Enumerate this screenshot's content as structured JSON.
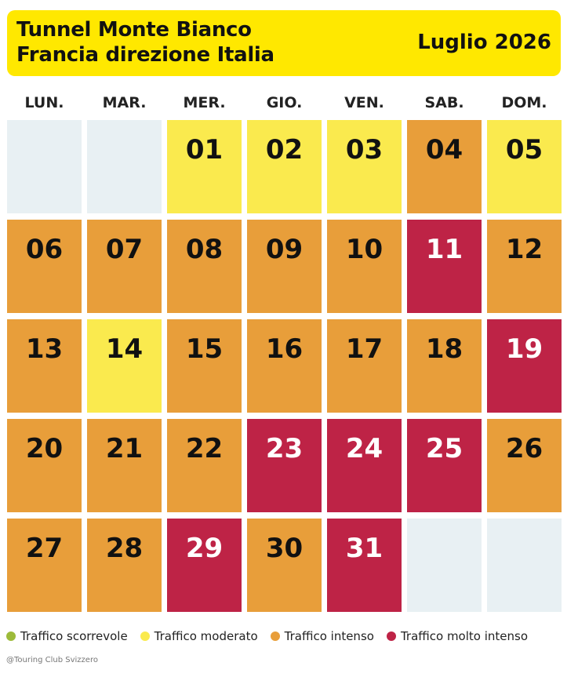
{
  "header": {
    "title": [
      "Tunnel Monte Bianco",
      "Francia direzione Italia"
    ],
    "month": "Luglio 2026"
  },
  "weekdays": [
    "LUN.",
    "MAR.",
    "MER.",
    "GIO.",
    "VEN.",
    "SAB.",
    "DOM."
  ],
  "empty_color": "#E8F0F3",
  "weeks": [
    [
      null,
      null,
      {
        "label": "01",
        "level": 1
      },
      {
        "label": "02",
        "level": 1
      },
      {
        "label": "03",
        "level": 1
      },
      {
        "label": "04",
        "level": 2
      },
      {
        "label": "05",
        "level": 1
      }
    ],
    [
      {
        "label": "06",
        "level": 2
      },
      {
        "label": "07",
        "level": 2
      },
      {
        "label": "08",
        "level": 2
      },
      {
        "label": "09",
        "level": 2
      },
      {
        "label": "10",
        "level": 2
      },
      {
        "label": "11",
        "level": 3
      },
      {
        "label": "12",
        "level": 2
      }
    ],
    [
      {
        "label": "13",
        "level": 2
      },
      {
        "label": "14",
        "level": 1
      },
      {
        "label": "15",
        "level": 2
      },
      {
        "label": "16",
        "level": 2
      },
      {
        "label": "17",
        "level": 2
      },
      {
        "label": "18",
        "level": 2
      },
      {
        "label": "19",
        "level": 3
      }
    ],
    [
      {
        "label": "20",
        "level": 2
      },
      {
        "label": "21",
        "level": 2
      },
      {
        "label": "22",
        "level": 2
      },
      {
        "label": "23",
        "level": 3
      },
      {
        "label": "24",
        "level": 3
      },
      {
        "label": "25",
        "level": 3
      },
      {
        "label": "26",
        "level": 2
      }
    ],
    [
      {
        "label": "27",
        "level": 2
      },
      {
        "label": "28",
        "level": 2
      },
      {
        "label": "29",
        "level": 3
      },
      {
        "label": "30",
        "level": 2
      },
      {
        "label": "31",
        "level": 3
      },
      null,
      null
    ]
  ],
  "legend": [
    {
      "label": "Traffico scorrevole",
      "color": "#9DBB3A",
      "text_color": "#111"
    },
    {
      "label": "Traffico moderato",
      "color": "#FAEA4E",
      "text_color": "#111"
    },
    {
      "label": "Traffico intenso",
      "color": "#E89E3A",
      "text_color": "#111"
    },
    {
      "label": "Traffico molto intenso",
      "color": "#BE2346",
      "text_color": "#fff"
    }
  ],
  "credit": "@Touring Club Svizzero"
}
